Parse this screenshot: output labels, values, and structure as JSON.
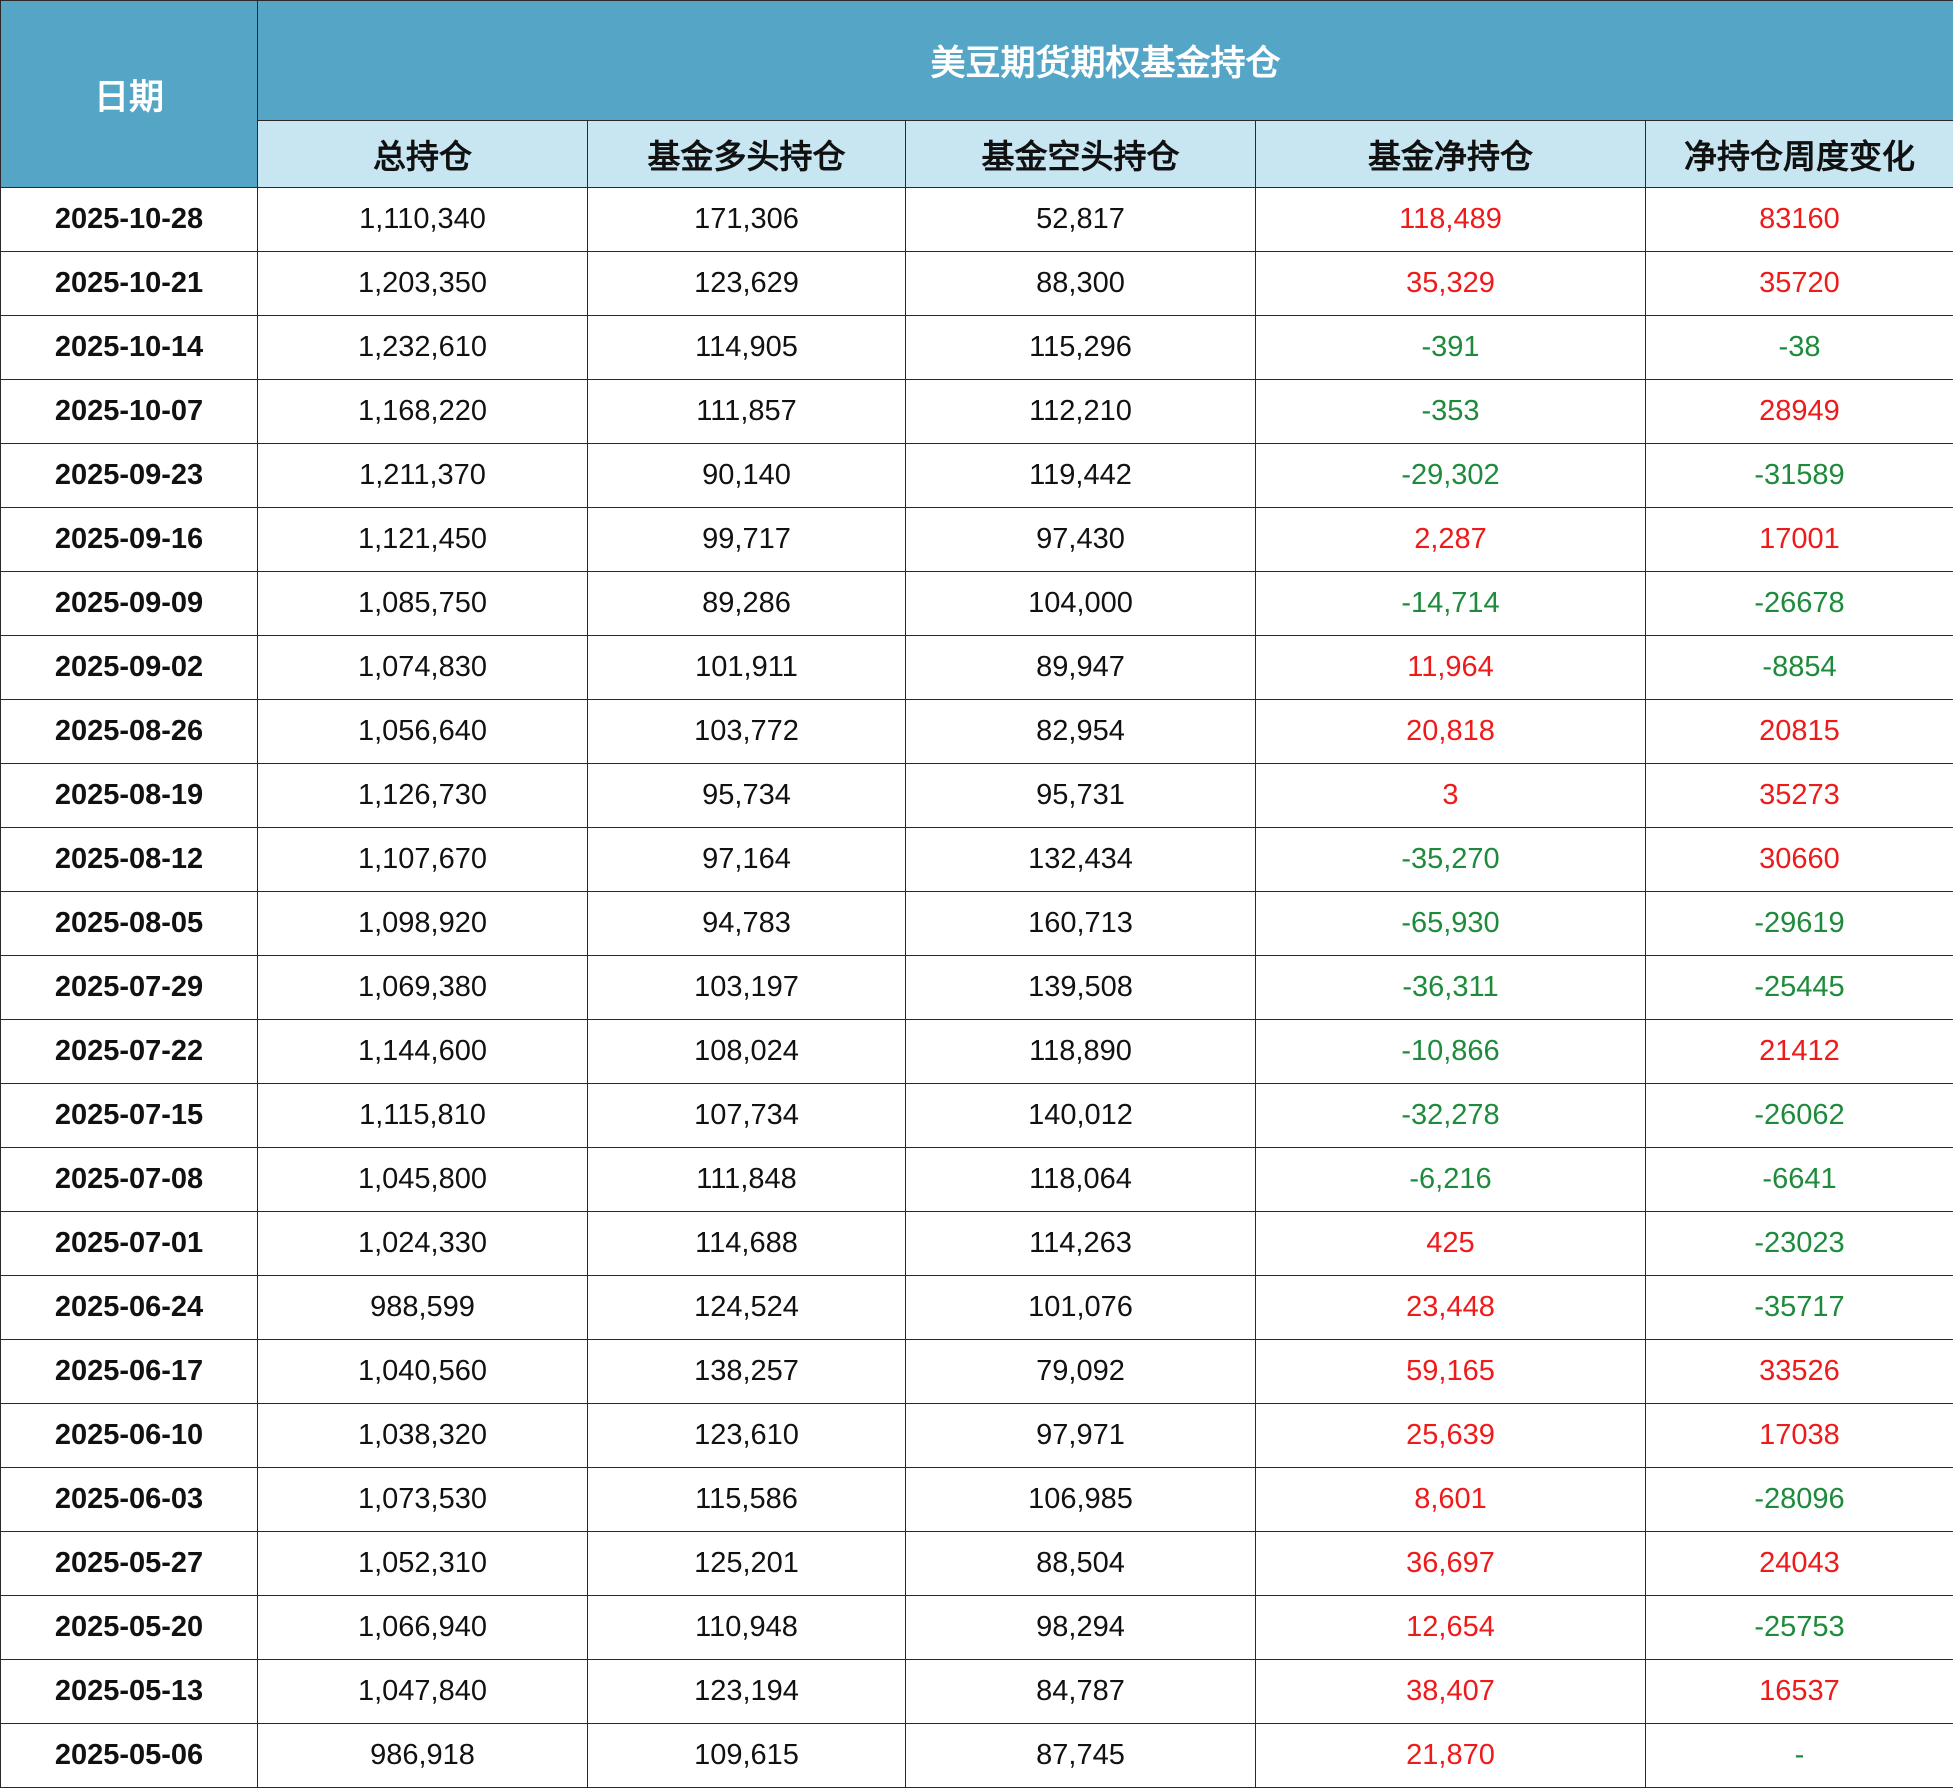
{
  "header": {
    "date_label": "日期",
    "group_title": "美豆期货期权基金持仓",
    "columns": [
      "总持仓",
      "基金多头持仓",
      "基金空头持仓",
      "基金净持仓",
      "净持仓周度变化"
    ]
  },
  "colors": {
    "header_blue": "#55a5c7",
    "subheader_light_blue": "#c8e6f2",
    "positive_red": "#ee1b1b",
    "negative_green": "#1e8a3c"
  },
  "rows": [
    {
      "date": "2025-10-28",
      "total": "1,110,340",
      "long": "171,306",
      "short": "52,817",
      "net": "118,489",
      "change": "83160"
    },
    {
      "date": "2025-10-21",
      "total": "1,203,350",
      "long": "123,629",
      "short": "88,300",
      "net": "35,329",
      "change": "35720"
    },
    {
      "date": "2025-10-14",
      "total": "1,232,610",
      "long": "114,905",
      "short": "115,296",
      "net": "-391",
      "change": "-38"
    },
    {
      "date": "2025-10-07",
      "total": "1,168,220",
      "long": "111,857",
      "short": "112,210",
      "net": "-353",
      "change": "28949"
    },
    {
      "date": "2025-09-23",
      "total": "1,211,370",
      "long": "90,140",
      "short": "119,442",
      "net": "-29,302",
      "change": "-31589"
    },
    {
      "date": "2025-09-16",
      "total": "1,121,450",
      "long": "99,717",
      "short": "97,430",
      "net": "2,287",
      "change": "17001"
    },
    {
      "date": "2025-09-09",
      "total": "1,085,750",
      "long": "89,286",
      "short": "104,000",
      "net": "-14,714",
      "change": "-26678"
    },
    {
      "date": "2025-09-02",
      "total": "1,074,830",
      "long": "101,911",
      "short": "89,947",
      "net": "11,964",
      "change": "-8854"
    },
    {
      "date": "2025-08-26",
      "total": "1,056,640",
      "long": "103,772",
      "short": "82,954",
      "net": "20,818",
      "change": "20815"
    },
    {
      "date": "2025-08-19",
      "total": "1,126,730",
      "long": "95,734",
      "short": "95,731",
      "net": "3",
      "change": "35273"
    },
    {
      "date": "2025-08-12",
      "total": "1,107,670",
      "long": "97,164",
      "short": "132,434",
      "net": "-35,270",
      "change": "30660"
    },
    {
      "date": "2025-08-05",
      "total": "1,098,920",
      "long": "94,783",
      "short": "160,713",
      "net": "-65,930",
      "change": "-29619"
    },
    {
      "date": "2025-07-29",
      "total": "1,069,380",
      "long": "103,197",
      "short": "139,508",
      "net": "-36,311",
      "change": "-25445"
    },
    {
      "date": "2025-07-22",
      "total": "1,144,600",
      "long": "108,024",
      "short": "118,890",
      "net": "-10,866",
      "change": "21412"
    },
    {
      "date": "2025-07-15",
      "total": "1,115,810",
      "long": "107,734",
      "short": "140,012",
      "net": "-32,278",
      "change": "-26062"
    },
    {
      "date": "2025-07-08",
      "total": "1,045,800",
      "long": "111,848",
      "short": "118,064",
      "net": "-6,216",
      "change": "-6641"
    },
    {
      "date": "2025-07-01",
      "total": "1,024,330",
      "long": "114,688",
      "short": "114,263",
      "net": "425",
      "change": "-23023"
    },
    {
      "date": "2025-06-24",
      "total": "988,599",
      "long": "124,524",
      "short": "101,076",
      "net": "23,448",
      "change": "-35717"
    },
    {
      "date": "2025-06-17",
      "total": "1,040,560",
      "long": "138,257",
      "short": "79,092",
      "net": "59,165",
      "change": "33526"
    },
    {
      "date": "2025-06-10",
      "total": "1,038,320",
      "long": "123,610",
      "short": "97,971",
      "net": "25,639",
      "change": "17038"
    },
    {
      "date": "2025-06-03",
      "total": "1,073,530",
      "long": "115,586",
      "short": "106,985",
      "net": "8,601",
      "change": "-28096"
    },
    {
      "date": "2025-05-27",
      "total": "1,052,310",
      "long": "125,201",
      "short": "88,504",
      "net": "36,697",
      "change": "24043"
    },
    {
      "date": "2025-05-20",
      "total": "1,066,940",
      "long": "110,948",
      "short": "98,294",
      "net": "12,654",
      "change": "-25753"
    },
    {
      "date": "2025-05-13",
      "total": "1,047,840",
      "long": "123,194",
      "short": "84,787",
      "net": "38,407",
      "change": "16537"
    },
    {
      "date": "2025-05-06",
      "total": "986,918",
      "long": "109,615",
      "short": "87,745",
      "net": "21,870",
      "change": "-"
    }
  ]
}
